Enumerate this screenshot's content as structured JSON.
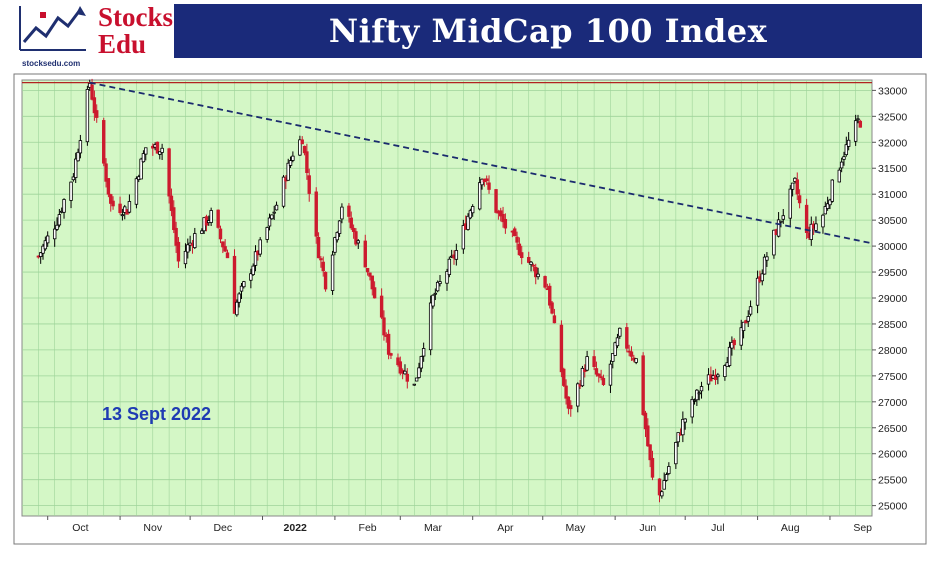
{
  "header": {
    "logo_line1": "Stocks",
    "logo_line2": "Edu",
    "logo_url": "stocksedu.com",
    "title": "Nifty MidCap 100 Index"
  },
  "annotation": {
    "date": "13 Sept 2022"
  },
  "colors": {
    "plot_bg": "#d4f7c6",
    "grid": "#9ed49a",
    "up_candle": "#000000",
    "down_candle": "#cc1a2e",
    "trendline": "#1a2a6e",
    "resistance": "#b22222",
    "title_bg": "#1a2a7a",
    "annotation": "#1f3bb3"
  },
  "chart_data": {
    "type": "candlestick",
    "title": "Nifty MidCap 100 Index",
    "x_ticks": [
      "Oct",
      "Nov",
      "Dec",
      "2022",
      "Feb",
      "Mar",
      "Apr",
      "May",
      "Jun",
      "Jul",
      "Aug",
      "Sep"
    ],
    "y_ticks": [
      25000,
      25500,
      26000,
      26500,
      27000,
      27500,
      28000,
      28500,
      29000,
      29500,
      30000,
      30500,
      31000,
      31500,
      32000,
      32500,
      33000
    ],
    "ylim": [
      24800,
      33200
    ],
    "grid": true,
    "horizontal_line": 33150,
    "trendline": {
      "from": [
        "Oct-19",
        33150
      ],
      "to": [
        "Sep-14",
        30100
      ]
    },
    "anchors": [
      [
        "2021-09-27",
        29800
      ],
      [
        "2021-10-05",
        30500
      ],
      [
        "2021-10-12",
        31400
      ],
      [
        "2021-10-19",
        33150
      ],
      [
        "2021-10-28",
        30800
      ],
      [
        "2021-11-04",
        30700
      ],
      [
        "2021-11-12",
        31900
      ],
      [
        "2021-11-19",
        31900
      ],
      [
        "2021-11-26",
        29700
      ],
      [
        "2021-12-03",
        30200
      ],
      [
        "2021-12-10",
        30600
      ],
      [
        "2021-12-17",
        29800
      ],
      [
        "2021-12-20",
        28800
      ],
      [
        "2021-12-31",
        30000
      ],
      [
        "2022-01-07",
        30800
      ],
      [
        "2022-01-14",
        31800
      ],
      [
        "2022-01-18",
        32100
      ],
      [
        "2022-01-24",
        30100
      ],
      [
        "2022-01-28",
        29300
      ],
      [
        "2022-02-04",
        30800
      ],
      [
        "2022-02-14",
        29700
      ],
      [
        "2022-02-24",
        28000
      ],
      [
        "2022-03-07",
        27300
      ],
      [
        "2022-03-15",
        29000
      ],
      [
        "2022-03-25",
        29900
      ],
      [
        "2022-04-05",
        31400
      ],
      [
        "2022-04-12",
        30600
      ],
      [
        "2022-04-20",
        30000
      ],
      [
        "2022-05-03",
        29200
      ],
      [
        "2022-05-12",
        26800
      ],
      [
        "2022-05-20",
        27800
      ],
      [
        "2022-05-27",
        27300
      ],
      [
        "2022-06-03",
        28300
      ],
      [
        "2022-06-10",
        27800
      ],
      [
        "2022-06-17",
        25500
      ],
      [
        "2022-06-20",
        25200
      ],
      [
        "2022-06-30",
        26600
      ],
      [
        "2022-07-08",
        27300
      ],
      [
        "2022-07-15",
        27600
      ],
      [
        "2022-07-25",
        28300
      ],
      [
        "2022-08-01",
        29300
      ],
      [
        "2022-08-08",
        30200
      ],
      [
        "2022-08-17",
        31200
      ],
      [
        "2022-08-22",
        30200
      ],
      [
        "2022-08-29",
        30600
      ],
      [
        "2022-09-06",
        31700
      ],
      [
        "2022-09-13",
        32400
      ]
    ]
  }
}
